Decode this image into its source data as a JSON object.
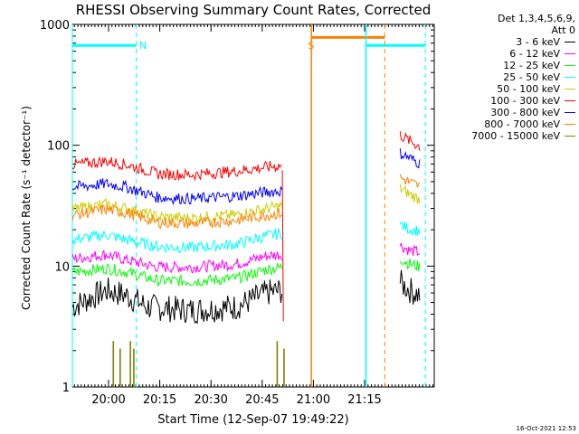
{
  "chart_data": {
    "type": "line",
    "title": "RHESSI Observing Summary Count Rates, Corrected",
    "xlabel": "Start Time (12-Sep-07 19:49:22)",
    "ylabel": "Corrected Count Rate (s⁻¹ detector⁻¹)",
    "x_range_minutes": [
      0,
      106
    ],
    "x_ticks": [
      {
        "label": "20:00",
        "minute": 10.6
      },
      {
        "label": "20:15",
        "minute": 25.6
      },
      {
        "label": "20:30",
        "minute": 40.6
      },
      {
        "label": "20:45",
        "minute": 55.6
      },
      {
        "label": "21:00",
        "minute": 70.6
      },
      {
        "label": "21:15",
        "minute": 85.6
      }
    ],
    "y_scale": "log",
    "ylim": [
      1,
      1000
    ],
    "y_ticks": [
      1,
      10,
      100,
      1000
    ],
    "legend": {
      "header_line1": "Det 1,3,4,5,6,9,",
      "header_line2": "Att 0",
      "position": "right"
    },
    "series": [
      {
        "name": "3 - 6 keV",
        "color": "#000000",
        "values": [
          {
            "x": 0,
            "y": 4.6
          },
          {
            "x": 10,
            "y": 6.3
          },
          {
            "x": 16,
            "y": 5.7
          },
          {
            "x": 22,
            "y": 4.6
          },
          {
            "x": 35,
            "y": 4.3
          },
          {
            "x": 48,
            "y": 4.6
          },
          {
            "x": 57,
            "y": 6.0
          },
          {
            "x": 61.5,
            "y": 6.3
          }
        ],
        "values_after": [
          {
            "x": 96,
            "y": 7.3
          },
          {
            "x": 99,
            "y": 6.3
          },
          {
            "x": 102,
            "y": 5.7
          }
        ]
      },
      {
        "name": "6 - 12 keV",
        "color": "#ff00ff",
        "values": [
          {
            "x": 0,
            "y": 11.5
          },
          {
            "x": 10,
            "y": 12.5
          },
          {
            "x": 16,
            "y": 11.2
          },
          {
            "x": 25,
            "y": 9.8
          },
          {
            "x": 35,
            "y": 9.8
          },
          {
            "x": 48,
            "y": 10.4
          },
          {
            "x": 57,
            "y": 12.2
          },
          {
            "x": 61.5,
            "y": 12.5
          }
        ],
        "values_after": [
          {
            "x": 96,
            "y": 14.8
          },
          {
            "x": 99,
            "y": 13.4
          },
          {
            "x": 102,
            "y": 13.0
          }
        ]
      },
      {
        "name": "12 - 25 keV",
        "color": "#00ff00",
        "values": [
          {
            "x": 0,
            "y": 8.9
          },
          {
            "x": 10,
            "y": 9.6
          },
          {
            "x": 16,
            "y": 8.9
          },
          {
            "x": 25,
            "y": 7.6
          },
          {
            "x": 35,
            "y": 7.5
          },
          {
            "x": 48,
            "y": 7.9
          },
          {
            "x": 57,
            "y": 9.4
          },
          {
            "x": 61.5,
            "y": 9.8
          }
        ],
        "values_after": [
          {
            "x": 96,
            "y": 11.5
          },
          {
            "x": 99,
            "y": 10.4
          },
          {
            "x": 102,
            "y": 9.8
          }
        ]
      },
      {
        "name": "25 - 50 keV",
        "color": "#00ffff",
        "values": [
          {
            "x": 0,
            "y": 16.5
          },
          {
            "x": 10,
            "y": 18.2
          },
          {
            "x": 16,
            "y": 16.5
          },
          {
            "x": 25,
            "y": 14.5
          },
          {
            "x": 35,
            "y": 14.2
          },
          {
            "x": 48,
            "y": 15.2
          },
          {
            "x": 57,
            "y": 17.8
          },
          {
            "x": 61.5,
            "y": 18.7
          }
        ],
        "values_after": [
          {
            "x": 96,
            "y": 22.0
          },
          {
            "x": 99,
            "y": 20.2
          },
          {
            "x": 102,
            "y": 19.5
          }
        ]
      },
      {
        "name": "50 - 100 keV",
        "color": "#cccc00",
        "values": [
          {
            "x": 0,
            "y": 29.5
          },
          {
            "x": 10,
            "y": 32.5
          },
          {
            "x": 16,
            "y": 30.0
          },
          {
            "x": 25,
            "y": 25.5
          },
          {
            "x": 35,
            "y": 25.0
          },
          {
            "x": 48,
            "y": 26.5
          },
          {
            "x": 57,
            "y": 30.0
          },
          {
            "x": 61.5,
            "y": 31.5
          }
        ],
        "values_after": [
          {
            "x": 96,
            "y": 44.0
          },
          {
            "x": 99,
            "y": 39.0
          },
          {
            "x": 102,
            "y": 35.5
          }
        ]
      },
      {
        "name": "100 - 300 keV",
        "color": "#ff0000",
        "values": [
          {
            "x": 0,
            "y": 69.0
          },
          {
            "x": 10,
            "y": 74.0
          },
          {
            "x": 16,
            "y": 69.0
          },
          {
            "x": 25,
            "y": 58.0
          },
          {
            "x": 35,
            "y": 57.0
          },
          {
            "x": 48,
            "y": 61.0
          },
          {
            "x": 57,
            "y": 66.0
          },
          {
            "x": 61.5,
            "y": 68.0
          }
        ],
        "values_after": [
          {
            "x": 96,
            "y": 122.0
          },
          {
            "x": 99,
            "y": 108.0
          },
          {
            "x": 102,
            "y": 97.0
          }
        ]
      },
      {
        "name": "300 - 800 keV",
        "color": "#0000ff",
        "values": [
          {
            "x": 0,
            "y": 45.0
          },
          {
            "x": 10,
            "y": 48.0
          },
          {
            "x": 16,
            "y": 45.0
          },
          {
            "x": 25,
            "y": 37.0
          },
          {
            "x": 35,
            "y": 36.0
          },
          {
            "x": 48,
            "y": 38.0
          },
          {
            "x": 57,
            "y": 41.0
          },
          {
            "x": 61.5,
            "y": 42.0
          }
        ],
        "values_after": [
          {
            "x": 96,
            "y": 86.0
          },
          {
            "x": 99,
            "y": 78.0
          },
          {
            "x": 102,
            "y": 70.0
          }
        ]
      },
      {
        "name": "800 - 7000 keV",
        "color": "#ff8000",
        "values": [
          {
            "x": 0,
            "y": 26.5
          },
          {
            "x": 10,
            "y": 29.5
          },
          {
            "x": 16,
            "y": 27.5
          },
          {
            "x": 25,
            "y": 23.0
          },
          {
            "x": 35,
            "y": 22.5
          },
          {
            "x": 48,
            "y": 24.0
          },
          {
            "x": 57,
            "y": 26.5
          },
          {
            "x": 61.5,
            "y": 27.5
          }
        ],
        "values_after": [
          {
            "x": 96,
            "y": 54.0
          },
          {
            "x": 99,
            "y": 49.0
          },
          {
            "x": 102,
            "y": 45.5
          }
        ]
      },
      {
        "name": "7000 - 15000 keV",
        "color": "#808000",
        "values": [
          {
            "x": 12,
            "y": 1.5
          },
          {
            "x": 14,
            "y": 1.3
          },
          {
            "x": 17,
            "y": 1.5
          },
          {
            "x": 18,
            "y": 1.3
          },
          {
            "x": 60,
            "y": 1.5
          },
          {
            "x": 62,
            "y": 1.3
          }
        ],
        "values_after": []
      }
    ],
    "annotations": [
      {
        "text": "N",
        "color": "#00ffff",
        "x": 19.6
      },
      {
        "text": "S",
        "color": "#ff8000",
        "x": 69.0
      }
    ],
    "markers": {
      "night_color": "#00ffff",
      "saa_color": "#ff8000",
      "night_intervals": [
        [
          0,
          18.7
        ],
        [
          86.0,
          103.4
        ]
      ],
      "saa_interval": [
        70.0,
        91.5
      ]
    }
  },
  "timestamp": "16-Oct-2021 12:53"
}
